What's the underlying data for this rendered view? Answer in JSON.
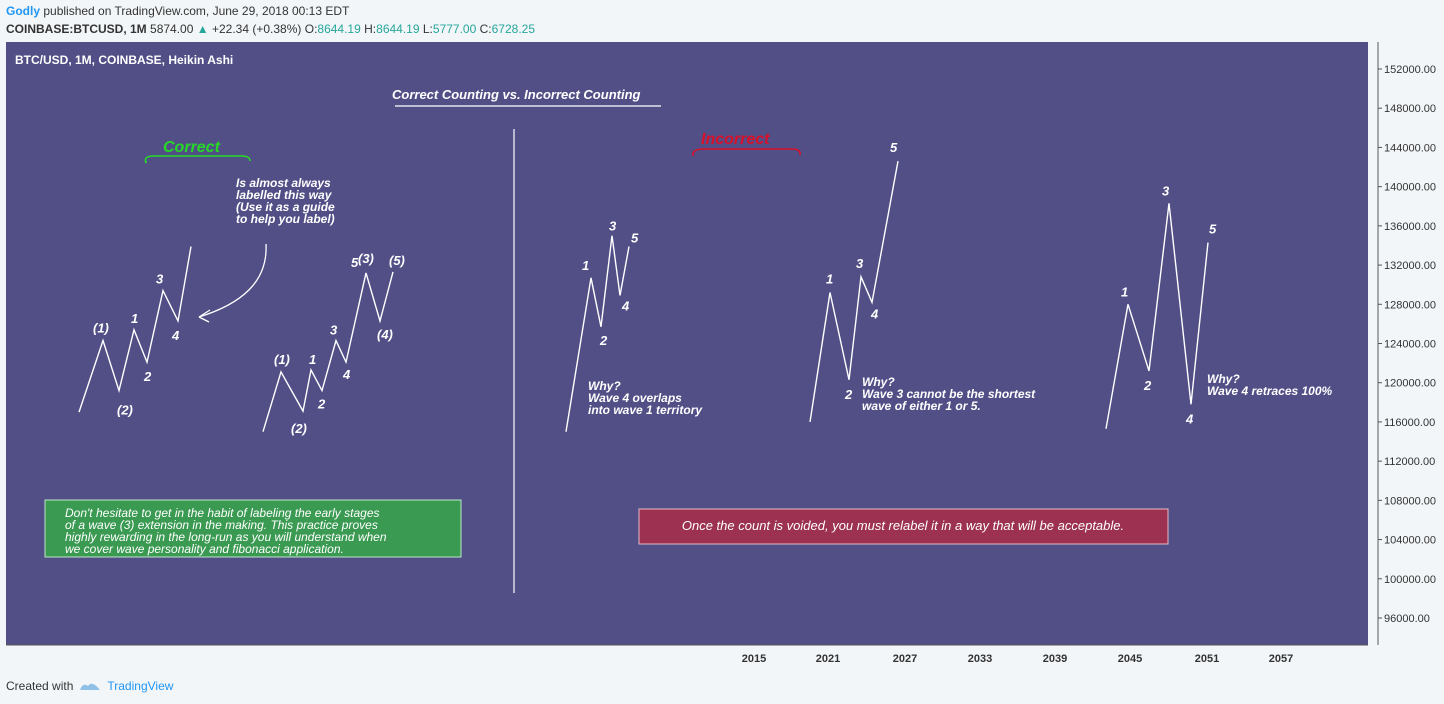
{
  "header": {
    "user": "Godly",
    "published": " published on TradingView.com, June 29, 2018 00:13 EDT",
    "symbol": "COINBASE:BTCUSD, 1M",
    "price": "5874.00",
    "change": "+22.34 (+0.38%)",
    "o_label": "O:",
    "o_val": "8644.19",
    "h_label": "H:",
    "h_val": "8644.19",
    "l_label": "L:",
    "l_val": "5777.00",
    "c_label": "C:",
    "c_val": "6728.25"
  },
  "chart_title": "BTC/USD, 1M, COINBASE, Heikin Ashi",
  "headline": "Correct Counting vs. Incorrect Counting",
  "correct_label": "Correct",
  "incorrect_label": "Incorrect",
  "note_lines": [
    "Is almost always",
    "labelled this way",
    "(Use it as a guide",
    "to help you label)"
  ],
  "why1": [
    "Why?",
    "Wave 4 overlaps",
    "into wave 1 territory"
  ],
  "why2": [
    "Why?",
    "Wave 3 cannot be the shortest",
    "wave of either 1 or 5."
  ],
  "why3": [
    "Why?",
    "Wave 4 retraces 100%"
  ],
  "green_box": [
    "Don't hesitate to get in the habit of labeling the early stages",
    "of a wave (3) extension in the making. This practice proves",
    "highly rewarding in the long-run as you will understand when",
    "we cover wave personality and fibonacci application."
  ],
  "red_box": "Once the count is voided, you must relabel it in a way that will be acceptable.",
  "footer": {
    "created": "Created with",
    "brand": "TradingView"
  },
  "colors": {
    "bg": "#524f86",
    "green_box": "#3a9a52",
    "red_box": "#9c3151",
    "correct": "#26d926",
    "incorrect": "#d9102a"
  },
  "chart_data": {
    "type": "line",
    "title": "BTC/USD, 1M, COINBASE, Heikin Ashi",
    "y_ticks": [
      "152000.00",
      "148000.00",
      "144000.00",
      "140000.00",
      "136000.00",
      "132000.00",
      "128000.00",
      "124000.00",
      "120000.00",
      "116000.00",
      "112000.00",
      "108000.00",
      "104000.00",
      "100000.00",
      "96000.00"
    ],
    "x_ticks": [
      "2015",
      "2021",
      "2027",
      "2033",
      "2039",
      "2045",
      "2051",
      "2057"
    ],
    "ylim": [
      96000,
      152000
    ],
    "grid": false,
    "series": [
      {
        "points": [
          [
            0,
            117000
          ],
          [
            1,
            124300
          ],
          [
            2,
            119200
          ],
          [
            3,
            125400
          ],
          [
            4,
            122100
          ],
          [
            5,
            129400
          ],
          [
            6,
            126300
          ],
          [
            7,
            133900
          ]
        ],
        "labels": [
          "",
          "(1)",
          "(2)",
          "1",
          "2",
          "3",
          "4",
          ""
        ]
      },
      {
        "points": [
          [
            0,
            115000
          ],
          [
            1,
            121100
          ],
          [
            2,
            117100
          ],
          [
            3,
            121300
          ],
          [
            4,
            119200
          ],
          [
            5,
            124300
          ],
          [
            6,
            122100
          ],
          [
            7,
            131200
          ],
          [
            8,
            126300
          ],
          [
            9,
            131300
          ]
        ],
        "labels": [
          "",
          "(1)",
          "(2)",
          "1",
          "2",
          "3",
          "4",
          "5 (3)",
          "(4)",
          "(5)"
        ]
      },
      {
        "points": [
          [
            0,
            115000
          ],
          [
            1,
            130700
          ],
          [
            2,
            125700
          ],
          [
            3,
            135000
          ],
          [
            4,
            128900
          ],
          [
            5,
            133900
          ]
        ],
        "labels": [
          "",
          "1",
          "2",
          "3",
          "4",
          "5"
        ]
      },
      {
        "points": [
          [
            0,
            116000
          ],
          [
            1,
            129200
          ],
          [
            2,
            120300
          ],
          [
            3,
            130800
          ],
          [
            4,
            128200
          ],
          [
            5,
            142600
          ]
        ],
        "labels": [
          "",
          "1",
          "2",
          "3",
          "4",
          "5"
        ]
      },
      {
        "points": [
          [
            0,
            115300
          ],
          [
            1,
            128000
          ],
          [
            2,
            121200
          ],
          [
            3,
            138300
          ],
          [
            4,
            117800
          ],
          [
            5,
            134300
          ]
        ],
        "labels": [
          "",
          "1",
          "2",
          "3",
          "4",
          "5"
        ]
      }
    ]
  }
}
